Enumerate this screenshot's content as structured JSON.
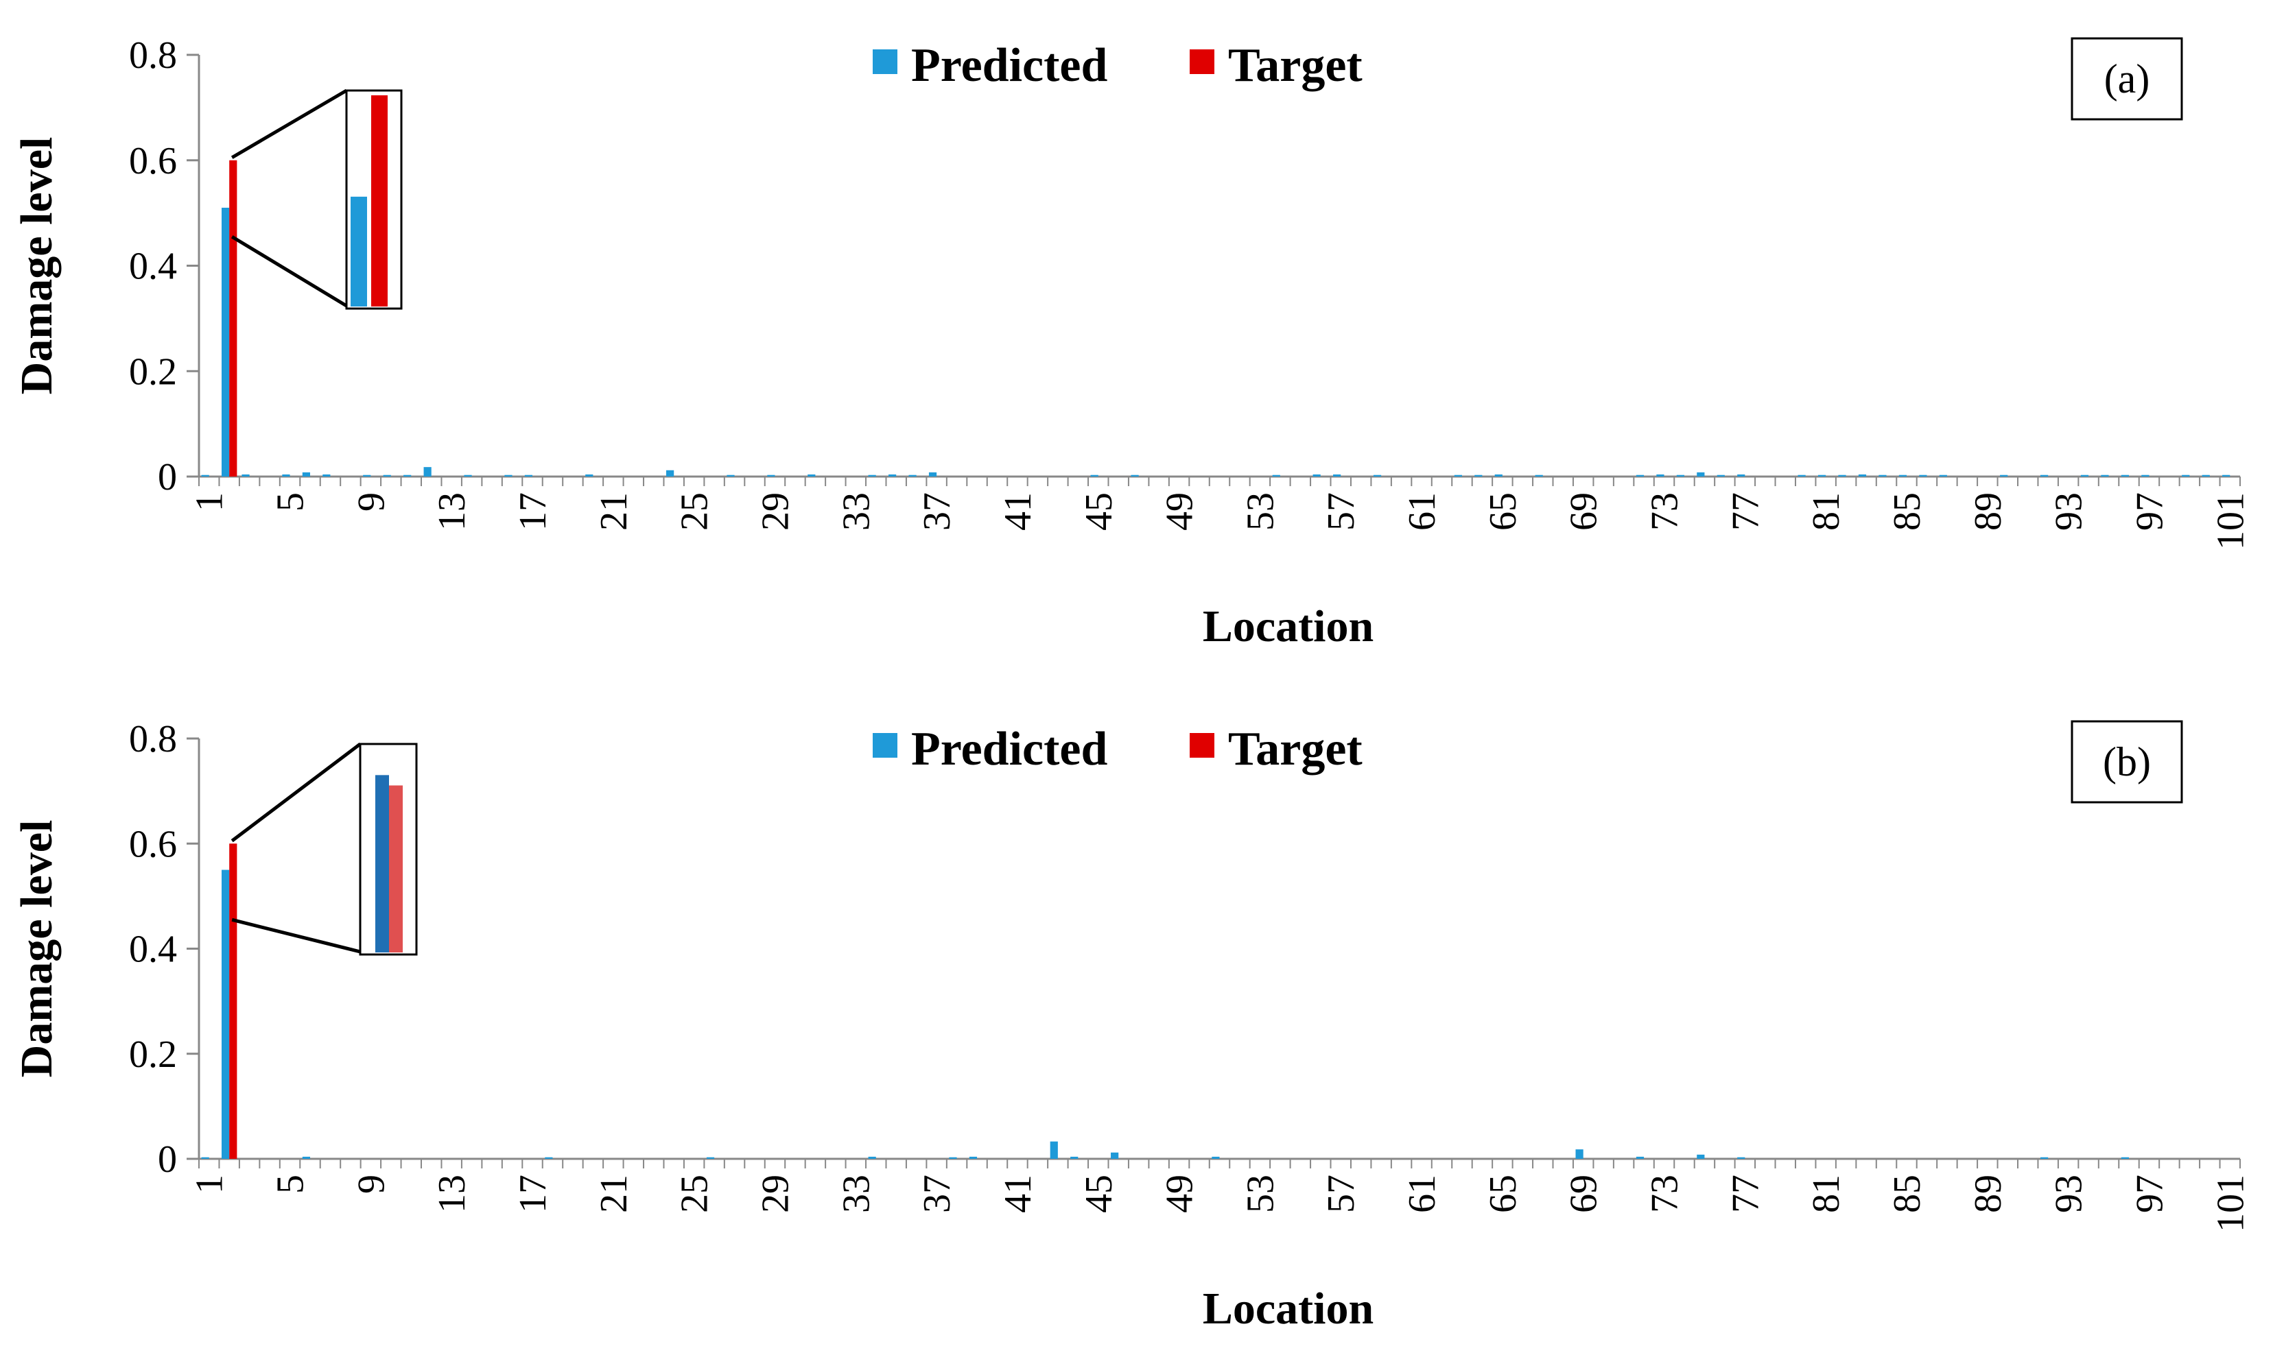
{
  "chart_data": [
    {
      "type": "bar",
      "panel_label": "(a)",
      "xlabel": "Location",
      "ylabel": "Damage level",
      "ylim": [
        0,
        0.8
      ],
      "yticks": [
        "0",
        "0.2",
        "0.4",
        "0.6",
        "0.8"
      ],
      "x_tick_labels": [
        "1",
        "5",
        "9",
        "13",
        "17",
        "21",
        "25",
        "29",
        "33",
        "37",
        "41",
        "45",
        "49",
        "53",
        "57",
        "61",
        "65",
        "69",
        "73",
        "77",
        "81",
        "85",
        "89",
        "93",
        "97",
        "101"
      ],
      "legend": {
        "placement": "top-center",
        "entries": [
          "Predicted",
          "Target"
        ]
      },
      "colors": {
        "predicted": "#1f9ad8",
        "target": "#e00000"
      },
      "series": [
        {
          "name": "Predicted",
          "values": [
            0.003,
            0.51,
            0.004,
            0,
            0.004,
            0.008,
            0.004,
            0,
            0.003,
            0.003,
            0.003,
            0.018,
            0,
            0.003,
            0,
            0.003,
            0.003,
            0,
            0,
            0.004,
            0,
            0,
            0,
            0.012,
            0,
            0,
            0.003,
            0,
            0.003,
            0,
            0.004,
            0,
            0,
            0.003,
            0.004,
            0.003,
            0.008,
            0,
            0,
            0,
            0,
            0,
            0,
            0,
            0.003,
            0,
            0.003,
            0,
            0,
            0,
            0,
            0,
            0,
            0.003,
            0,
            0.004,
            0.004,
            0,
            0.003,
            0,
            0,
            0,
            0.003,
            0.003,
            0.004,
            0,
            0.003,
            0,
            0,
            0,
            0,
            0.003,
            0.004,
            0.003,
            0.008,
            0.003,
            0.004,
            0,
            0,
            0.003,
            0.003,
            0.003,
            0.004,
            0.003,
            0.003,
            0.003,
            0.003,
            0,
            0,
            0.003,
            0,
            0.003,
            0,
            0.003,
            0.003,
            0.003,
            0.003,
            0,
            0.003,
            0.003,
            0.003
          ]
        },
        {
          "name": "Target",
          "values": [
            0,
            0.6,
            0,
            0,
            0,
            0,
            0,
            0,
            0,
            0,
            0,
            0,
            0,
            0,
            0,
            0,
            0,
            0,
            0,
            0,
            0,
            0,
            0,
            0,
            0,
            0,
            0,
            0,
            0,
            0,
            0,
            0,
            0,
            0,
            0,
            0,
            0,
            0,
            0,
            0,
            0,
            0,
            0,
            0,
            0,
            0,
            0,
            0,
            0,
            0,
            0,
            0,
            0,
            0,
            0,
            0,
            0,
            0,
            0,
            0,
            0,
            0,
            0,
            0,
            0,
            0,
            0,
            0,
            0,
            0,
            0,
            0,
            0,
            0,
            0,
            0,
            0,
            0,
            0,
            0,
            0,
            0,
            0,
            0,
            0,
            0,
            0,
            0,
            0,
            0,
            0,
            0,
            0,
            0,
            0,
            0,
            0,
            0,
            0,
            0,
            0
          ]
        }
      ],
      "inset": {
        "location": 2
      }
    },
    {
      "type": "bar",
      "panel_label": "(b)",
      "xlabel": "Location",
      "ylabel": "Damage level",
      "ylim": [
        0,
        0.8
      ],
      "yticks": [
        "0",
        "0.2",
        "0.4",
        "0.6",
        "0.8"
      ],
      "x_tick_labels": [
        "1",
        "5",
        "9",
        "13",
        "17",
        "21",
        "25",
        "29",
        "33",
        "37",
        "41",
        "45",
        "49",
        "53",
        "57",
        "61",
        "65",
        "69",
        "73",
        "77",
        "81",
        "85",
        "89",
        "93",
        "97",
        "101"
      ],
      "legend": {
        "placement": "top-center",
        "entries": [
          "Predicted",
          "Target"
        ]
      },
      "colors": {
        "predicted": "#1f9ad8",
        "target": "#e00000",
        "inset_predicted": "#1f6fb4",
        "inset_target": "#e05050"
      },
      "series": [
        {
          "name": "Predicted",
          "values": [
            0.003,
            0.55,
            0,
            0,
            0,
            0.004,
            0,
            0,
            0,
            0,
            0,
            0,
            0,
            0,
            0,
            0,
            0,
            0.003,
            0,
            0,
            0,
            0,
            0,
            0,
            0,
            0.003,
            0,
            0,
            0,
            0,
            0,
            0,
            0,
            0.004,
            0,
            0,
            0,
            0.003,
            0.004,
            0,
            0,
            0,
            0.033,
            0.004,
            0,
            0.012,
            0,
            0,
            0,
            0,
            0.004,
            0,
            0,
            0,
            0,
            0,
            0,
            0,
            0,
            0,
            0,
            0,
            0,
            0,
            0,
            0,
            0,
            0,
            0.018,
            0,
            0,
            0.004,
            0,
            0,
            0.008,
            0,
            0.003,
            0,
            0,
            0,
            0,
            0,
            0,
            0,
            0,
            0,
            0,
            0,
            0,
            0,
            0,
            0.003,
            0,
            0,
            0,
            0.003,
            0,
            0,
            0,
            0,
            0
          ]
        },
        {
          "name": "Target",
          "values": [
            0,
            0.6,
            0,
            0,
            0,
            0,
            0,
            0,
            0,
            0,
            0,
            0,
            0,
            0,
            0,
            0,
            0,
            0,
            0,
            0,
            0,
            0,
            0,
            0,
            0,
            0,
            0,
            0,
            0,
            0,
            0,
            0,
            0,
            0,
            0,
            0,
            0,
            0,
            0,
            0,
            0,
            0,
            0,
            0,
            0,
            0,
            0,
            0,
            0,
            0,
            0,
            0,
            0,
            0,
            0,
            0,
            0,
            0,
            0,
            0,
            0,
            0,
            0,
            0,
            0,
            0,
            0,
            0,
            0,
            0,
            0,
            0,
            0,
            0,
            0,
            0,
            0,
            0,
            0,
            0,
            0,
            0,
            0,
            0,
            0,
            0,
            0,
            0,
            0,
            0,
            0,
            0,
            0,
            0,
            0,
            0,
            0,
            0,
            0,
            0,
            0
          ]
        }
      ],
      "inset": {
        "location": 2
      }
    }
  ]
}
